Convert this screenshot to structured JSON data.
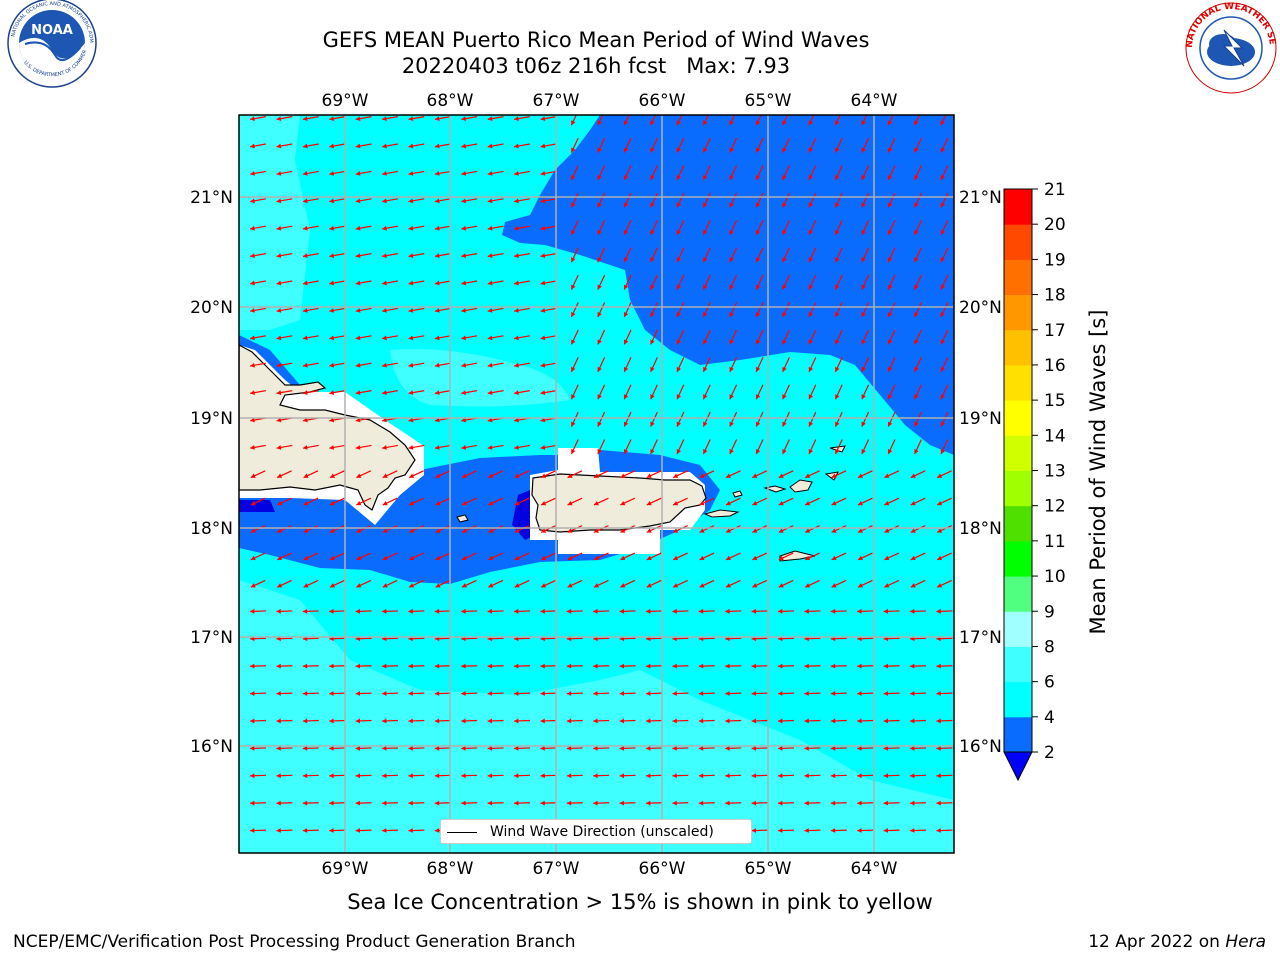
{
  "header": {
    "title_line1": "GEFS MEAN Puerto Rico Mean Period of Wind Waves",
    "title_line2": "20220403 t06z 216h fcst   Max: 7.93"
  },
  "logos": {
    "left": "noaa-logo",
    "right": "nws-logo",
    "left_text": "NOAA",
    "nws_ring_text": "NATIONAL WEATHER SERVICE"
  },
  "map": {
    "region": "Puerto Rico",
    "lon_labels": [
      "69°W",
      "68°W",
      "67°W",
      "66°W",
      "65°W",
      "64°W"
    ],
    "lat_labels": [
      "21°N",
      "20°N",
      "19°N",
      "18°N",
      "17°N",
      "16°N"
    ],
    "legend_label": "Wind Wave Direction (unscaled)",
    "arrow_color": "#ff0000",
    "land_color": "#efecdc"
  },
  "colorbar": {
    "label": "Mean Period of Wind Waves [s]",
    "ticks": [
      "2",
      "4",
      "6",
      "8",
      "9",
      "10",
      "11",
      "12",
      "13",
      "14",
      "15",
      "16",
      "17",
      "18",
      "19",
      "20",
      "21"
    ],
    "colors": [
      "#0a6cff",
      "#00ffff",
      "#40ffff",
      "#a0ffff",
      "#50ff80",
      "#00ff00",
      "#50e000",
      "#a0ff00",
      "#d0ff00",
      "#ffff00",
      "#ffe000",
      "#ffc000",
      "#ff9800",
      "#ff7000",
      "#ff4800",
      "#ff0000"
    ],
    "extend_color": "#0000ff"
  },
  "note": "Sea Ice Concentration > 15% is shown in pink to yellow",
  "footer": {
    "left": "NCEP/EMC/Verification Post Processing Product Generation Branch",
    "date": "12 Apr 2022 on ",
    "machine": "Hera"
  }
}
